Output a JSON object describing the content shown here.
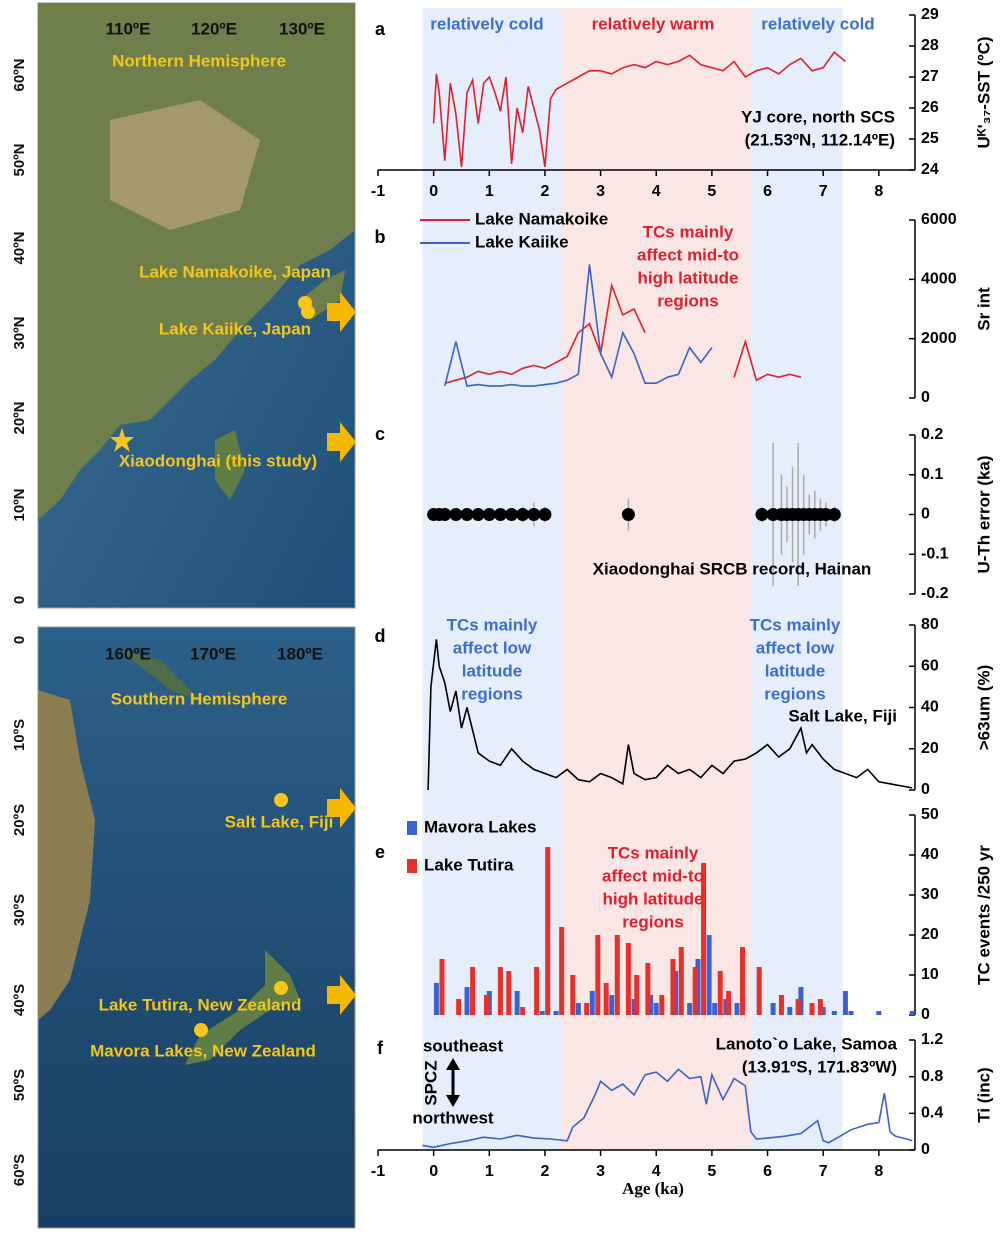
{
  "maps": [
    {
      "hemisphere": "Northern Hemisphere",
      "longitudes": [
        "110ºE",
        "120ºE",
        "130ºE"
      ],
      "latitudes": [
        "60ºN",
        "50ºN",
        "40ºN",
        "30ºN",
        "20ºN",
        "10ºN",
        "0"
      ],
      "sites": [
        "Lake Namakoike, Japan",
        "Lake Kaiike, Japan",
        "Xiaodonghai (this study)"
      ]
    },
    {
      "hemisphere": "Southern Hemisphere",
      "longitudes": [
        "160ºE",
        "170ºE",
        "180ºE"
      ],
      "latitudes": [
        "0",
        "10ºS",
        "20ºS",
        "30ºS",
        "40ºS",
        "50ºS",
        "60ºS"
      ],
      "sites": [
        "Salt Lake, Fiji",
        "Lake Tutira, New Zealand",
        "Mavora Lakes, New Zealand"
      ]
    }
  ],
  "shaded_periods": [
    {
      "range": [
        -0.2,
        2.3
      ],
      "color": "#e6edfb"
    },
    {
      "range": [
        2.3,
        5.7
      ],
      "color": "#fbe6e6"
    },
    {
      "range": [
        5.7,
        7.35
      ],
      "color": "#e6edfb"
    }
  ],
  "x_label": "Age (ka)",
  "chart_data": [
    {
      "type": "line",
      "label": "a",
      "y_label": "Uᴷ'₃₇-SST (ºC)",
      "xlim": [
        -1,
        8.65
      ],
      "xticks": [
        -1,
        0,
        1,
        2,
        3,
        4,
        5,
        6,
        7,
        8
      ],
      "ylim": [
        24,
        29
      ],
      "yticks": [
        24,
        25,
        26,
        27,
        28,
        29
      ],
      "series": [
        {
          "color": "#e0202a",
          "x": [
            0,
            0.05,
            0.1,
            0.2,
            0.3,
            0.4,
            0.5,
            0.6,
            0.7,
            0.8,
            0.9,
            1.0,
            1.1,
            1.2,
            1.3,
            1.4,
            1.5,
            1.6,
            1.7,
            1.8,
            1.9,
            2.0,
            2.1,
            2.2,
            2.4,
            2.6,
            2.8,
            3.0,
            3.2,
            3.4,
            3.6,
            3.8,
            4.0,
            4.2,
            4.4,
            4.6,
            4.8,
            5.0,
            5.2,
            5.4,
            5.6,
            5.8,
            6.0,
            6.2,
            6.4,
            6.6,
            6.8,
            7.0,
            7.2,
            7.4
          ],
          "values": [
            25.5,
            27.1,
            26.5,
            24.3,
            26.8,
            25.8,
            24.1,
            26.5,
            26.9,
            25.5,
            26.8,
            27.0,
            26.5,
            25.9,
            27.0,
            24.2,
            26.0,
            25.2,
            26.7,
            26.0,
            25.3,
            24.1,
            26.3,
            26.6,
            26.8,
            27.0,
            27.2,
            27.2,
            27.1,
            27.3,
            27.4,
            27.3,
            27.5,
            27.4,
            27.5,
            27.7,
            27.4,
            27.3,
            27.2,
            27.5,
            27.0,
            27.2,
            27.3,
            27.1,
            27.4,
            27.6,
            27.2,
            27.3,
            27.8,
            27.5
          ]
        }
      ],
      "annotations": [
        {
          "lines": [
            "YJ core, north SCS",
            "(21.53ºN, 112.14ºE)"
          ],
          "color": "#000000"
        },
        {
          "lines": [
            "relatively cold"
          ],
          "color": "#3a6fd0"
        },
        {
          "lines": [
            "relatively warm"
          ],
          "color": "#e0202a"
        },
        {
          "lines": [
            "relatively cold"
          ],
          "color": "#3a6fd0"
        }
      ]
    },
    {
      "type": "line",
      "label": "b",
      "y_label": "Sr int",
      "xlim": [
        -1,
        8.65
      ],
      "ylim": [
        0,
        6000
      ],
      "yticks": [
        0,
        2000,
        4000,
        6000
      ],
      "series": [
        {
          "name": "Lake Namakoike",
          "color": "#e0202a",
          "x": [
            0.2,
            0.4,
            0.6,
            0.8,
            1.0,
            1.2,
            1.4,
            1.6,
            1.8,
            2.0,
            2.2,
            2.4,
            2.6,
            2.8,
            3.0,
            3.2,
            3.4,
            3.6,
            3.8,
            4.0,
            4.2,
            4.4,
            4.6,
            4.8,
            5.0,
            5.2,
            5.4,
            5.6,
            5.8,
            6.0,
            6.2,
            6.4,
            6.6
          ],
          "values": [
            500,
            600,
            700,
            900,
            800,
            900,
            800,
            1000,
            1100,
            1000,
            1200,
            1400,
            2200,
            2500,
            1500,
            3800,
            2800,
            3000,
            2200,
            null,
            null,
            null,
            null,
            null,
            null,
            null,
            700,
            1900,
            600,
            800,
            700,
            800,
            700
          ]
        },
        {
          "name": "Lake Kaiike",
          "color": "#3a62c8",
          "x": [
            0.2,
            0.4,
            0.6,
            0.8,
            1.0,
            1.2,
            1.4,
            1.6,
            1.8,
            2.0,
            2.2,
            2.4,
            2.6,
            2.8,
            3.0,
            3.2,
            3.4,
            3.6,
            3.8,
            4.0,
            4.2,
            4.4,
            4.6,
            4.8,
            5.0,
            5.2,
            5.4,
            5.6,
            5.8,
            6.0,
            6.2,
            6.4,
            6.6
          ],
          "values": [
            400,
            1900,
            400,
            450,
            400,
            400,
            450,
            400,
            400,
            450,
            500,
            600,
            800,
            4500,
            1500,
            700,
            2200,
            1500,
            500,
            500,
            700,
            800,
            1700,
            1200,
            1700,
            null,
            null,
            null,
            null,
            null,
            null,
            null,
            null
          ]
        }
      ],
      "annotations": [
        {
          "lines": [
            "TCs mainly",
            "affect mid-to",
            "high latitude",
            "regions"
          ],
          "color": "#e0202a"
        }
      ]
    },
    {
      "type": "scatter",
      "label": "c",
      "y_label": "U-Th error (ka)",
      "xlim": [
        -1,
        8.65
      ],
      "ylim": [
        -0.2,
        0.2
      ],
      "yticks": [
        -0.2,
        -0.1,
        0,
        0.1,
        0.2
      ],
      "series": [
        {
          "color": "#000000",
          "x": [
            0,
            0.1,
            0.2,
            0.4,
            0.6,
            0.8,
            1.0,
            1.2,
            1.4,
            1.6,
            1.8,
            2.0,
            3.5,
            5.9,
            6.1,
            6.25,
            6.35,
            6.45,
            6.55,
            6.65,
            6.75,
            6.85,
            6.95,
            7.05,
            7.2
          ],
          "values": [
            0,
            0,
            0,
            0,
            0,
            0,
            0,
            0,
            0,
            0,
            0,
            0,
            0,
            0,
            0,
            0,
            0,
            0,
            0,
            0,
            0,
            0,
            0,
            0,
            0
          ],
          "errors": [
            0.005,
            0.005,
            0.008,
            0.01,
            0.008,
            0.01,
            0.01,
            0.01,
            0.015,
            0.02,
            0.03,
            0.02,
            0.04,
            0.02,
            0.18,
            0.1,
            0.07,
            0.12,
            0.18,
            0.1,
            0.05,
            0.06,
            0.04,
            0.03,
            0.02
          ]
        }
      ],
      "annotations": [
        {
          "lines": [
            "Xiaodonghai SRCB record, Hainan"
          ],
          "color": "#000000"
        }
      ]
    },
    {
      "type": "line",
      "label": "d",
      "y_label": ">63um (%)",
      "xlim": [
        -1,
        8.65
      ],
      "ylim": [
        0,
        80
      ],
      "yticks": [
        0,
        20,
        40,
        60,
        80
      ],
      "series": [
        {
          "color": "#000000",
          "x": [
            -0.1,
            -0.05,
            0.05,
            0.1,
            0.2,
            0.3,
            0.4,
            0.5,
            0.6,
            0.8,
            1.0,
            1.2,
            1.4,
            1.6,
            1.8,
            2.0,
            2.2,
            2.4,
            2.6,
            2.8,
            3.0,
            3.2,
            3.4,
            3.5,
            3.6,
            3.8,
            4.0,
            4.2,
            4.4,
            4.6,
            4.8,
            5.0,
            5.2,
            5.4,
            5.6,
            5.8,
            6.0,
            6.2,
            6.4,
            6.6,
            6.7,
            6.8,
            7.0,
            7.2,
            7.4,
            7.6,
            7.8,
            8.0,
            8.2,
            8.4,
            8.6
          ],
          "values": [
            0,
            50,
            73,
            60,
            52,
            38,
            48,
            30,
            40,
            18,
            14,
            12,
            20,
            14,
            10,
            8,
            6,
            10,
            5,
            4,
            8,
            6,
            3,
            22,
            8,
            5,
            6,
            12,
            8,
            10,
            6,
            12,
            8,
            14,
            15,
            18,
            22,
            16,
            20,
            30,
            18,
            22,
            15,
            10,
            8,
            6,
            10,
            4,
            3,
            2,
            1
          ]
        }
      ],
      "annotations": [
        {
          "lines": [
            "TCs mainly",
            "affect low",
            "latitude",
            "regions"
          ],
          "color": "#3a6fd0"
        },
        {
          "lines": [
            "TCs mainly",
            "affect low",
            "latitude",
            "regions"
          ],
          "color": "#3a6fd0"
        },
        {
          "lines": [
            "Salt Lake, Fiji"
          ],
          "color": "#000000"
        }
      ]
    },
    {
      "type": "bar",
      "label": "e",
      "y_label": "TC events /250 yr",
      "xlim": [
        -1,
        8.65
      ],
      "ylim": [
        0,
        50
      ],
      "yticks": [
        0,
        10,
        20,
        30,
        40,
        50
      ],
      "series": [
        {
          "name": "Mavora Lakes",
          "color": "#3a62d8",
          "x": [
            0.05,
            0.6,
            1.0,
            1.5,
            1.95,
            2.2,
            2.6,
            2.85,
            3.2,
            3.6,
            3.9,
            4.0,
            4.35,
            4.6,
            4.75,
            4.95,
            5.05,
            5.25,
            5.45,
            6.1,
            6.4,
            6.6,
            7.0,
            7.2,
            7.4,
            7.5,
            8.0,
            8.6
          ],
          "values": [
            8,
            7,
            6,
            6,
            1,
            1,
            3,
            6,
            5,
            4,
            5,
            3,
            11,
            3,
            14,
            20,
            3,
            4,
            3,
            3,
            2,
            7,
            2,
            1,
            6,
            1,
            1,
            1
          ]
        },
        {
          "name": "Lake Tutira",
          "color": "#e8302a",
          "x": [
            0.15,
            0.45,
            0.7,
            0.95,
            1.2,
            1.35,
            1.6,
            1.85,
            2.05,
            2.3,
            2.5,
            2.75,
            2.95,
            3.1,
            3.3,
            3.5,
            3.65,
            3.85,
            4.1,
            4.3,
            4.45,
            4.7,
            4.85,
            5.15,
            5.3,
            5.55,
            5.85,
            6.25,
            6.55,
            6.8,
            6.95
          ],
          "values": [
            14,
            4,
            12,
            5,
            12,
            11,
            2,
            12,
            42,
            22,
            10,
            3,
            20,
            8,
            20,
            18,
            10,
            13,
            5,
            14,
            17,
            12,
            38,
            11,
            6,
            17,
            12,
            5,
            4,
            3,
            4
          ]
        }
      ],
      "annotations": [
        {
          "lines": [
            "TCs mainly",
            "affect mid-to",
            "high latitude",
            "regions"
          ],
          "color": "#e0202a"
        }
      ]
    },
    {
      "type": "line",
      "label": "f",
      "y_label": "Ti (inc)",
      "xlim": [
        -1,
        8.65
      ],
      "xticks": [
        -1,
        0,
        1,
        2,
        3,
        4,
        5,
        6,
        7,
        8
      ],
      "ylim": [
        0,
        1.2
      ],
      "yticks": [
        0,
        0.4,
        0.8,
        1.2
      ],
      "series": [
        {
          "color": "#3a62c8",
          "x": [
            -0.2,
            0,
            0.3,
            0.6,
            0.9,
            1.2,
            1.5,
            1.8,
            2.1,
            2.4,
            2.5,
            2.7,
            2.9,
            3.0,
            3.2,
            3.4,
            3.6,
            3.8,
            4.0,
            4.2,
            4.4,
            4.6,
            4.8,
            4.9,
            5.0,
            5.2,
            5.4,
            5.6,
            5.7,
            5.8,
            6.0,
            6.3,
            6.6,
            6.9,
            7.0,
            7.1,
            7.3,
            7.5,
            7.8,
            8.0,
            8.1,
            8.2,
            8.3,
            8.5,
            8.6
          ],
          "values": [
            0.05,
            0.03,
            0.07,
            0.1,
            0.14,
            0.12,
            0.16,
            0.13,
            0.12,
            0.1,
            0.25,
            0.35,
            0.6,
            0.75,
            0.65,
            0.72,
            0.6,
            0.82,
            0.85,
            0.75,
            0.88,
            0.78,
            0.8,
            0.5,
            0.82,
            0.55,
            0.78,
            0.7,
            0.2,
            0.12,
            0.13,
            0.15,
            0.18,
            0.32,
            0.1,
            0.08,
            0.15,
            0.22,
            0.28,
            0.3,
            0.62,
            0.2,
            0.15,
            0.12,
            0.1
          ]
        }
      ],
      "annotations": [
        {
          "lines": [
            "southeast"
          ],
          "color": "#000000"
        },
        {
          "lines": [
            "northwest"
          ],
          "color": "#000000"
        },
        {
          "lines": [
            "SPCZ"
          ],
          "color": "#000000"
        },
        {
          "lines": [
            "Lanoto`o Lake, Samoa",
            "(13.91ºS, 171.83ºW)"
          ],
          "color": "#000000"
        }
      ]
    }
  ]
}
